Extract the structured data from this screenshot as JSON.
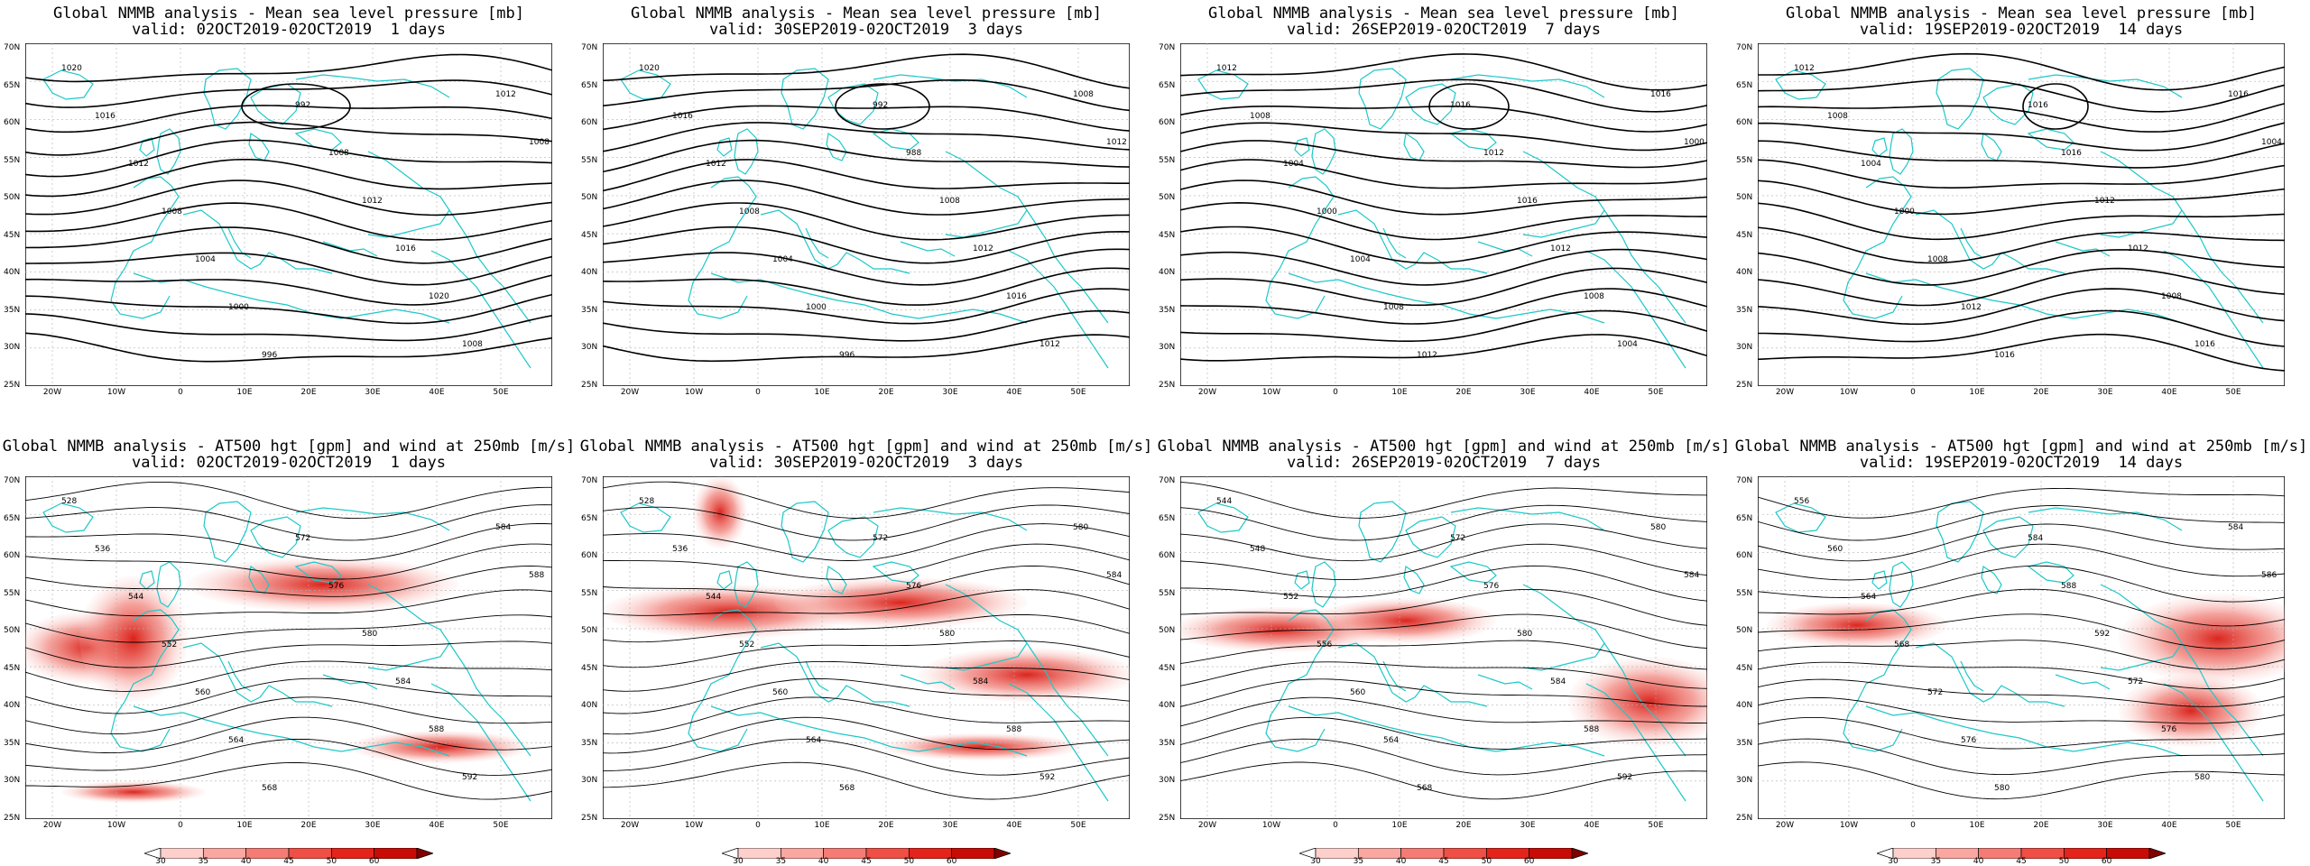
{
  "panels": [
    {
      "title": "Global NMMB analysis - Mean sea level pressure [mb]",
      "valid": "valid: 02OCT2019-02OCT2019  1 days",
      "kind": "mslp",
      "labels": [
        "1020",
        "1016",
        "1012",
        "1008",
        "1004",
        "1000",
        "996",
        "992",
        "1008",
        "1012",
        "1016",
        "1020",
        "1008",
        "1012",
        "1008"
      ]
    },
    {
      "title": "Global NMMB analysis - Mean sea level pressure [mb]",
      "valid": "valid: 30SEP2019-02OCT2019  3 days",
      "kind": "mslp",
      "labels": [
        "1020",
        "1016",
        "1012",
        "1008",
        "1004",
        "1000",
        "996",
        "992",
        "988",
        "1008",
        "1012",
        "1016",
        "1012",
        "1008",
        "1012"
      ]
    },
    {
      "title": "Global NMMB analysis - Mean sea level pressure [mb]",
      "valid": "valid: 26SEP2019-02OCT2019  7 days",
      "kind": "mslp",
      "labels": [
        "1012",
        "1008",
        "1004",
        "1000",
        "1004",
        "1008",
        "1012",
        "1016",
        "1012",
        "1016",
        "1012",
        "1008",
        "1004",
        "1016",
        "1000"
      ]
    },
    {
      "title": "Global NMMB analysis - Mean sea level pressure [mb]",
      "valid": "valid: 19SEP2019-02OCT2019  14 days",
      "kind": "mslp",
      "labels": [
        "1012",
        "1008",
        "1004",
        "1000",
        "1008",
        "1012",
        "1016",
        "1016",
        "1016",
        "1012",
        "1012",
        "1008",
        "1016",
        "1016",
        "1004"
      ]
    },
    {
      "title": "Global NMMB analysis - AT500 hgt [gpm] and wind at 250mb [m/s]",
      "valid": "valid: 02OCT2019-02OCT2019  1 days",
      "kind": "z500",
      "labels": [
        "528",
        "536",
        "544",
        "552",
        "560",
        "564",
        "568",
        "572",
        "576",
        "580",
        "584",
        "588",
        "592",
        "584",
        "588"
      ]
    },
    {
      "title": "Global NMMB analysis - AT500 hgt [gpm] and wind at 250mb [m/s]",
      "valid": "valid: 30SEP2019-02OCT2019  3 days",
      "kind": "z500",
      "labels": [
        "528",
        "536",
        "544",
        "552",
        "560",
        "564",
        "568",
        "572",
        "576",
        "580",
        "584",
        "588",
        "592",
        "580",
        "584"
      ]
    },
    {
      "title": "Global NMMB analysis - AT500 hgt [gpm] and wind at 250mb [m/s]",
      "valid": "valid: 26SEP2019-02OCT2019  7 days",
      "kind": "z500",
      "labels": [
        "544",
        "548",
        "552",
        "556",
        "560",
        "564",
        "568",
        "572",
        "576",
        "580",
        "584",
        "588",
        "592",
        "580",
        "584"
      ]
    },
    {
      "title": "Global NMMB analysis - AT500 hgt [gpm] and wind at 250mb [m/s]",
      "valid": "valid: 19SEP2019-02OCT2019  14 days",
      "kind": "z500",
      "labels": [
        "556",
        "560",
        "564",
        "568",
        "572",
        "576",
        "580",
        "584",
        "588",
        "592",
        "572",
        "576",
        "580",
        "584",
        "586"
      ]
    }
  ],
  "lat_labels": [
    "70N",
    "65N",
    "60N",
    "55N",
    "50N",
    "45N",
    "40N",
    "35N",
    "30N",
    "25N"
  ],
  "lon_labels": [
    "20W",
    "10W",
    "0",
    "10E",
    "20E",
    "30E",
    "40E",
    "50E"
  ],
  "colorbar": {
    "ticks": [
      "30",
      "35",
      "40",
      "45",
      "50",
      "60"
    ],
    "colors": [
      "#ffffff",
      "#fdd0cc",
      "#f9a7a0",
      "#f57c74",
      "#ef4f45",
      "#e4241a",
      "#c80c05",
      "#800000"
    ]
  },
  "colors": {
    "contour": "#000000",
    "coast": "#1ec8c8",
    "grid": "#b0b0b0"
  }
}
